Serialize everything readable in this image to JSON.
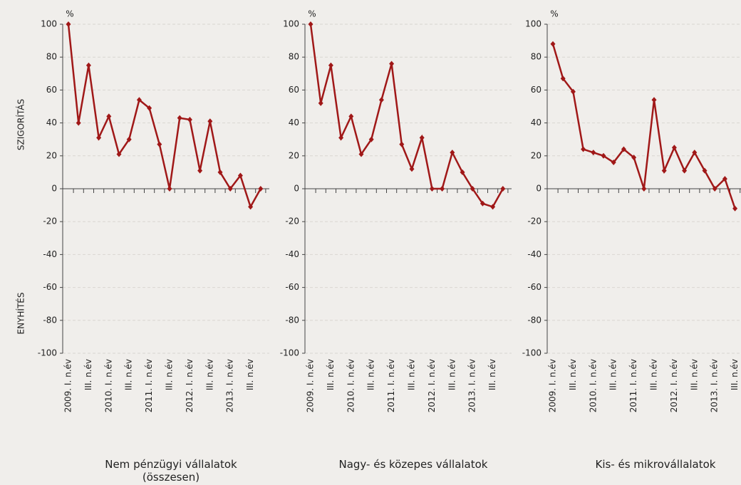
{
  "chart_data": [
    {
      "type": "line",
      "title": "Nem pénzügyi vállalatok\n(összesen)",
      "y_unit": "%",
      "annotations": [
        "SZIGORÍTÁS",
        "ENYHÍTÉS"
      ],
      "categories": [
        "2009. I. n.év",
        null,
        "III. n.év",
        null,
        "2010. I. n.év",
        null,
        "III. n.év",
        null,
        "2011. I. n.év",
        null,
        "III. n.év",
        null,
        "2012. I. n.év",
        null,
        "III. n.év",
        null,
        "2013. I. n.év",
        null,
        "III. n.év",
        null
      ],
      "series": [
        {
          "color": "#a01818",
          "values": [
            100,
            40,
            75,
            31,
            44,
            21,
            30,
            54,
            49,
            27,
            0,
            43,
            42,
            11,
            41,
            10,
            0,
            8,
            -11,
            0
          ]
        }
      ],
      "ylim": [
        -100,
        100
      ],
      "yticks": [
        -100,
        -80,
        -60,
        -40,
        -20,
        0,
        20,
        40,
        60,
        80,
        100
      ],
      "grid": true
    },
    {
      "type": "line",
      "title": "Nagy- és közepes vállalatok",
      "y_unit": "%",
      "categories": [
        "2009. I. n.év",
        null,
        "III. n.év",
        null,
        "2010. I. n.év",
        null,
        "III. n.év",
        null,
        "2011. I. n.év",
        null,
        "III. n.év",
        null,
        "2012. I. n.év",
        null,
        "III. n.év",
        null,
        "2013. I. n.év",
        null,
        "III. n.év",
        null
      ],
      "series": [
        {
          "color": "#a01818",
          "values": [
            100,
            52,
            75,
            31,
            44,
            21,
            30,
            54,
            76,
            27,
            12,
            31,
            0,
            0,
            22,
            10,
            0,
            -9,
            -11,
            0
          ]
        }
      ],
      "ylim": [
        -100,
        100
      ],
      "yticks": [
        -100,
        -80,
        -60,
        -40,
        -20,
        0,
        20,
        40,
        60,
        80,
        100
      ],
      "grid": true
    },
    {
      "type": "line",
      "title": "Kis- és mikrovállalatok",
      "y_unit": "%",
      "categories": [
        "2009. I. n.év",
        null,
        "III. n.év",
        null,
        "2010. I. n.év",
        null,
        "III. n.év",
        null,
        "2011. I. n.év",
        null,
        "III. n.év",
        null,
        "2012. I. n.év",
        null,
        "III. n.év",
        null,
        "2013. I. n.év",
        null,
        "III. n.év",
        null
      ],
      "series": [
        {
          "color": "#a01818",
          "values": [
            88,
            67,
            59,
            24,
            22,
            20,
            16,
            24,
            19,
            0,
            54,
            11,
            25,
            11,
            22,
            11,
            0,
            6,
            -12,
            null
          ]
        }
      ],
      "ylim": [
        -100,
        100
      ],
      "yticks": [
        -100,
        -80,
        -60,
        -40,
        -20,
        0,
        20,
        40,
        60,
        80,
        100
      ],
      "grid": true
    }
  ]
}
